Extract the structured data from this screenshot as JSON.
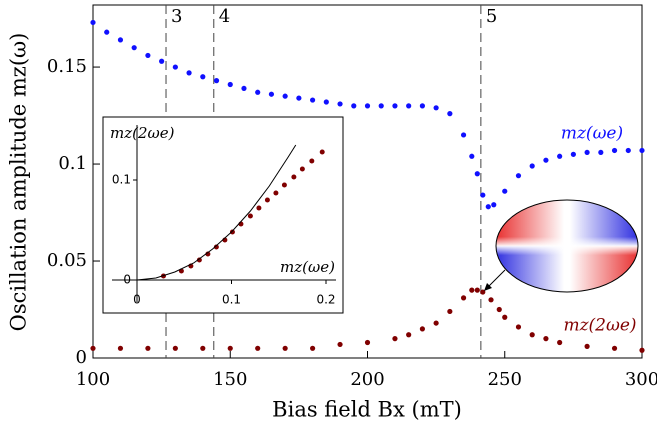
{
  "chart_data": [
    {
      "type": "scatter",
      "xlabel": "Bias field Bx (mT)",
      "ylabel": "Oscillation amplitude mz(ω)",
      "xlim": [
        100,
        300
      ],
      "xticks": [
        100,
        150,
        200,
        250,
        300
      ],
      "ylim": [
        0,
        0.182
      ],
      "yticks": [
        0,
        0.05,
        0.1,
        0.15
      ],
      "markers": [
        {
          "x": 126.6,
          "label": "3"
        },
        {
          "x": 144,
          "label": "4"
        },
        {
          "x": 241.3,
          "label": "5"
        }
      ],
      "series": [
        {
          "name": "mz(ωe)",
          "color": "#1010ff",
          "x": [
            100,
            105,
            110,
            115,
            120,
            125,
            130,
            135,
            140,
            145,
            150,
            155,
            160,
            165,
            170,
            175,
            180,
            185,
            190,
            195,
            200,
            205,
            210,
            215,
            220,
            225,
            230,
            235,
            238,
            240,
            242,
            244,
            246,
            250,
            255,
            260,
            265,
            270,
            275,
            280,
            285,
            290,
            295,
            300
          ],
          "values": [
            0.173,
            0.168,
            0.164,
            0.16,
            0.156,
            0.153,
            0.15,
            0.147,
            0.145,
            0.143,
            0.141,
            0.139,
            0.137,
            0.136,
            0.135,
            0.134,
            0.133,
            0.132,
            0.131,
            0.13,
            0.13,
            0.13,
            0.13,
            0.13,
            0.13,
            0.129,
            0.126,
            0.115,
            0.104,
            0.095,
            0.084,
            0.078,
            0.079,
            0.086,
            0.094,
            0.099,
            0.102,
            0.104,
            0.105,
            0.106,
            0.106,
            0.107,
            0.107,
            0.107
          ]
        },
        {
          "name": "mz(2ωe)",
          "color": "#800000",
          "x": [
            100,
            110,
            120,
            130,
            140,
            150,
            160,
            170,
            180,
            190,
            200,
            210,
            215,
            220,
            225,
            230,
            235,
            238,
            240,
            242,
            245,
            248,
            250,
            255,
            260,
            265,
            270,
            280,
            290,
            300
          ],
          "values": [
            0.005,
            0.005,
            0.005,
            0.005,
            0.005,
            0.005,
            0.005,
            0.005,
            0.005,
            0.007,
            0.008,
            0.01,
            0.012,
            0.015,
            0.018,
            0.024,
            0.031,
            0.035,
            0.035,
            0.034,
            0.03,
            0.025,
            0.021,
            0.016,
            0.012,
            0.01,
            0.008,
            0.006,
            0.005,
            0.004
          ]
        }
      ]
    },
    {
      "type": "scatter",
      "xlabel": "mz(ωe)",
      "ylabel": "mz(2ωe)",
      "xlim": [
        0,
        0.2
      ],
      "xticks": [
        0,
        0.1,
        0.2
      ],
      "ylim": [
        0,
        0.163
      ],
      "yticks": [
        0,
        0.1
      ],
      "series": [
        {
          "color": "#800000",
          "x": [
            0.028,
            0.047,
            0.057,
            0.066,
            0.075,
            0.084,
            0.093,
            0.101,
            0.11,
            0.12,
            0.129,
            0.138,
            0.147,
            0.156,
            0.166,
            0.175,
            0.185,
            0.196
          ],
          "values": [
            0.004,
            0.009,
            0.014,
            0.02,
            0.026,
            0.033,
            0.04,
            0.048,
            0.056,
            0.064,
            0.072,
            0.08,
            0.087,
            0.095,
            0.103,
            0.111,
            0.119,
            0.128
          ]
        }
      ],
      "fit": {
        "color": "#000000",
        "x": [
          0,
          0.02,
          0.04,
          0.06,
          0.08,
          0.1,
          0.12,
          0.14,
          0.16,
          0.168
        ],
        "values": [
          0,
          0.002,
          0.008,
          0.017,
          0.031,
          0.048,
          0.069,
          0.094,
          0.123,
          0.135
        ]
      }
    }
  ]
}
